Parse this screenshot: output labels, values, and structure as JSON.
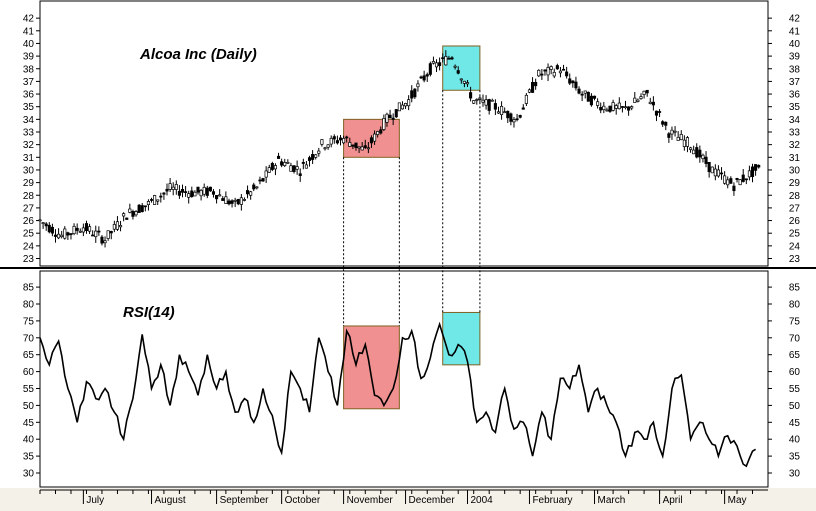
{
  "chart_data": [
    {
      "type": "candlestick",
      "title": "Alcoa Inc (Daily)",
      "yticks": [
        23,
        24,
        25,
        26,
        27,
        28,
        29,
        30,
        31,
        32,
        33,
        34,
        35,
        36,
        37,
        38,
        39,
        40,
        41,
        42
      ],
      "ylim": [
        22,
        43
      ],
      "xlabels": [
        "July",
        "August",
        "September",
        "October",
        "November",
        "December",
        "2004",
        "February",
        "March",
        "April",
        "May"
      ],
      "x": [
        0,
        7,
        14,
        21,
        28,
        35,
        42,
        49,
        56,
        63,
        70,
        77,
        84,
        91,
        98,
        105,
        112,
        119,
        126,
        133,
        140,
        147,
        154,
        161,
        168,
        175,
        182,
        189,
        196,
        203,
        210,
        217,
        224,
        231
      ],
      "y": [
        26,
        24.8,
        25.5,
        24.5,
        26.5,
        27.3,
        28.5,
        28.2,
        28.3,
        27.2,
        28.6,
        30.8,
        30,
        32,
        32.5,
        31.5,
        34,
        35.5,
        38,
        39,
        35.5,
        35,
        34,
        37.5,
        38,
        36,
        35,
        34.8,
        36,
        33,
        32,
        30,
        28.8,
        30
      ],
      "highlights": [
        {
          "x0": 98,
          "x1": 116,
          "y0": 31,
          "y1": 34,
          "color": "#f09090"
        },
        {
          "x0": 130,
          "x1": 142,
          "y0": 36.3,
          "y1": 39.8,
          "color": "#70e8e8"
        }
      ]
    },
    {
      "type": "line",
      "title": "RSI(14)",
      "yticks": [
        30,
        35,
        40,
        45,
        50,
        55,
        60,
        65,
        70,
        75,
        80,
        85
      ],
      "ylim": [
        26,
        89
      ],
      "x": [
        0,
        3,
        6,
        9,
        12,
        15,
        18,
        21,
        24,
        27,
        30,
        33,
        36,
        39,
        42,
        45,
        48,
        51,
        54,
        57,
        60,
        63,
        66,
        69,
        72,
        75,
        78,
        81,
        84,
        87,
        90,
        93,
        96,
        99,
        102,
        105,
        108,
        111,
        114,
        117,
        120,
        123,
        126,
        129,
        132,
        135,
        138,
        141,
        144,
        147,
        150,
        153,
        156,
        159,
        162,
        165,
        168,
        171,
        174,
        177,
        180,
        183,
        186,
        189,
        192,
        195,
        198,
        201,
        204,
        207,
        210,
        213,
        216,
        219,
        222,
        225,
        228,
        231
      ],
      "y": [
        70,
        62,
        69,
        55,
        45,
        57,
        52,
        55,
        48,
        40,
        52,
        71,
        55,
        62,
        50,
        65,
        60,
        53,
        65,
        55,
        60,
        48,
        52,
        45,
        55,
        47,
        36,
        60,
        55,
        48,
        70,
        60,
        50,
        72,
        62,
        68,
        53,
        50,
        55,
        70,
        72,
        58,
        64,
        74,
        65,
        68,
        63,
        45,
        48,
        42,
        55,
        43,
        45,
        35,
        48,
        40,
        58,
        55,
        62,
        48,
        55,
        50,
        45,
        35,
        42,
        40,
        45,
        35,
        55,
        59,
        40,
        45,
        40,
        35,
        41,
        38,
        32,
        37
      ],
      "highlights": [
        {
          "x0": 98,
          "x1": 116,
          "y0": 49,
          "y1": 73.5,
          "color": "#f09090"
        },
        {
          "x0": 130,
          "x1": 142,
          "y0": 62,
          "y1": 77.5,
          "color": "#70e8e8"
        }
      ]
    }
  ]
}
